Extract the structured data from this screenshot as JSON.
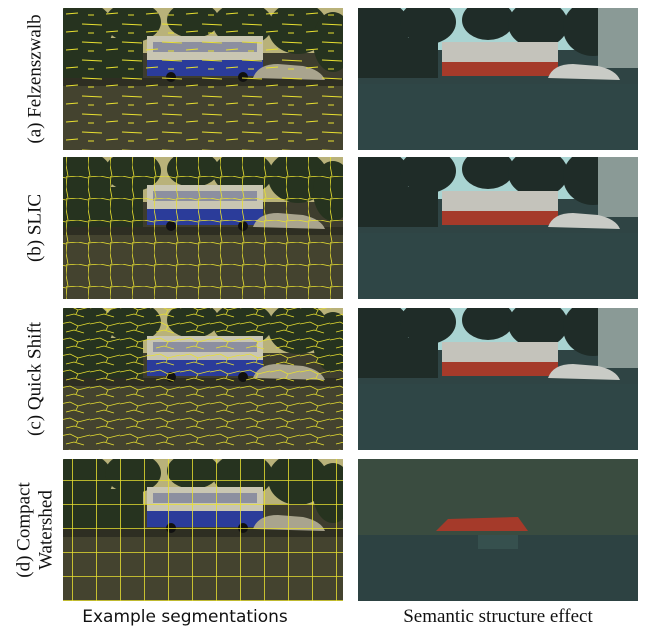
{
  "rows": [
    {
      "label": [
        "(a) Felzenszwalb"
      ]
    },
    {
      "label": [
        "(b) SLIC"
      ]
    },
    {
      "label": [
        "(c) Quick Shift"
      ]
    },
    {
      "label": [
        "(d) Compact",
        "Watershed"
      ]
    }
  ],
  "columns": [
    "Example segmentations",
    "Semantic structure effect"
  ]
}
